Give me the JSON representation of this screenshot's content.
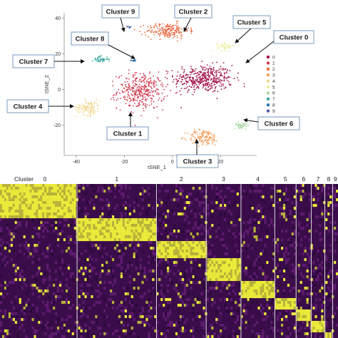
{
  "chart_data": [
    {
      "type": "scatter",
      "title": "",
      "xlabel": "tSNE_1",
      "ylabel": "tSNE_2",
      "xlim": [
        -45,
        35
      ],
      "ylim": [
        -37,
        43
      ],
      "xticks": [
        "-40",
        "-20",
        "0",
        "20"
      ],
      "yticks": [
        "40",
        "20",
        "0",
        "-20"
      ],
      "grid": false,
      "legend_position": "right",
      "series": [
        {
          "name": "0",
          "color": "#a3134a",
          "center": [
            13,
            6
          ],
          "spread": [
            11,
            7
          ],
          "count": 420
        },
        {
          "name": "1",
          "color": "#d23a4f",
          "center": [
            -13,
            -1
          ],
          "spread": [
            9,
            9
          ],
          "count": 360
        },
        {
          "name": "2",
          "color": "#e8673f",
          "center": [
            -2,
            33
          ],
          "spread": [
            8,
            4
          ],
          "count": 200
        },
        {
          "name": "3",
          "color": "#f2a05c",
          "center": [
            13,
            -27
          ],
          "spread": [
            6,
            4
          ],
          "count": 140
        },
        {
          "name": "4",
          "color": "#f5d58c",
          "center": [
            -35,
            -10
          ],
          "spread": [
            4.5,
            4
          ],
          "count": 110
        },
        {
          "name": "5",
          "color": "#eaeea0",
          "center": [
            22,
            24
          ],
          "spread": [
            3,
            2
          ],
          "count": 50
        },
        {
          "name": "6",
          "color": "#a8d9a3",
          "center": [
            29,
            -20
          ],
          "spread": [
            3,
            1.5
          ],
          "count": 45
        },
        {
          "name": "7",
          "color": "#3aa8a0",
          "center": [
            -30,
            17
          ],
          "spread": [
            3,
            1.5
          ],
          "count": 45
        },
        {
          "name": "8",
          "color": "#2a75b0",
          "center": [
            -16,
            16
          ],
          "spread": [
            1.2,
            0.5
          ],
          "count": 12
        },
        {
          "name": "9",
          "color": "#555aa8",
          "center": [
            -18,
            35
          ],
          "spread": [
            1.2,
            0.5
          ],
          "count": 10
        }
      ],
      "annotations": [
        {
          "text": "Cluster 9",
          "target_cluster": "9"
        },
        {
          "text": "Cluster 2",
          "target_cluster": "2"
        },
        {
          "text": "Cluster 5",
          "target_cluster": "5"
        },
        {
          "text": "Cluster 8",
          "target_cluster": "8"
        },
        {
          "text": "Cluster 0",
          "target_cluster": "0"
        },
        {
          "text": "Cluster 7",
          "target_cluster": "7"
        },
        {
          "text": "Cluster 4",
          "target_cluster": "4"
        },
        {
          "text": "Cluster 1",
          "target_cluster": "1"
        },
        {
          "text": "Cluster 6",
          "target_cluster": "6"
        },
        {
          "text": "Cluster 3",
          "target_cluster": "3"
        }
      ]
    },
    {
      "type": "heatmap",
      "header_label": "Cluster",
      "colorscale": [
        "#2a0a3a",
        "#6e1a7e",
        "#f2f23a"
      ],
      "clusters": [
        {
          "name": "0",
          "share": 0.228
        },
        {
          "name": "1",
          "share": 0.235
        },
        {
          "name": "2",
          "share": 0.147
        },
        {
          "name": "3",
          "share": 0.103
        },
        {
          "name": "4",
          "share": 0.1
        },
        {
          "name": "5",
          "share": 0.063
        },
        {
          "name": "6",
          "share": 0.045
        },
        {
          "name": "7",
          "share": 0.04
        },
        {
          "name": "8",
          "share": 0.023
        },
        {
          "name": "9",
          "share": 0.016
        }
      ],
      "marker_rows_per_cluster": [
        6,
        4,
        3,
        4,
        3,
        2,
        2,
        2,
        1,
        1
      ]
    }
  ]
}
